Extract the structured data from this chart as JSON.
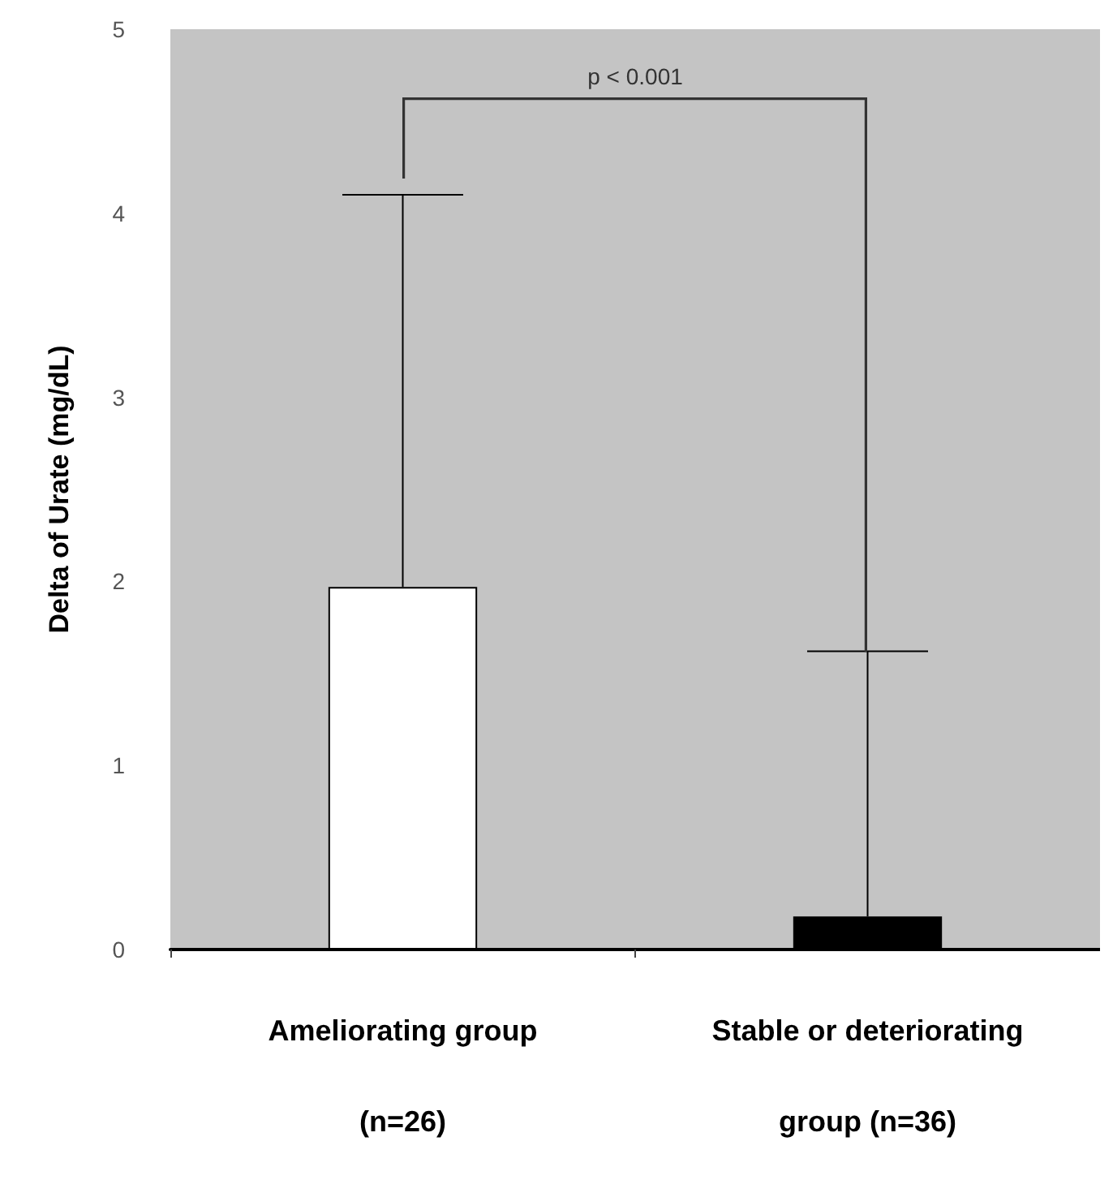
{
  "chart_data": {
    "type": "bar",
    "ylabel": "Delta of Urate (mg/dL)",
    "categories": [
      "Ameliorating group\n(n=26)",
      "Stable or deteriorating\ngroup (n=36)"
    ],
    "values": [
      1.97,
      0.18
    ],
    "colors": [
      "#ffffff",
      "#000000"
    ],
    "errors": [
      [
        1.97,
        4.1
      ],
      [
        0.18,
        1.62
      ]
    ],
    "ylim": [
      0,
      5
    ],
    "yticks": [
      0,
      1,
      2,
      3,
      4,
      5
    ],
    "annotations": [
      "p < 0.001"
    ],
    "grid": false
  }
}
